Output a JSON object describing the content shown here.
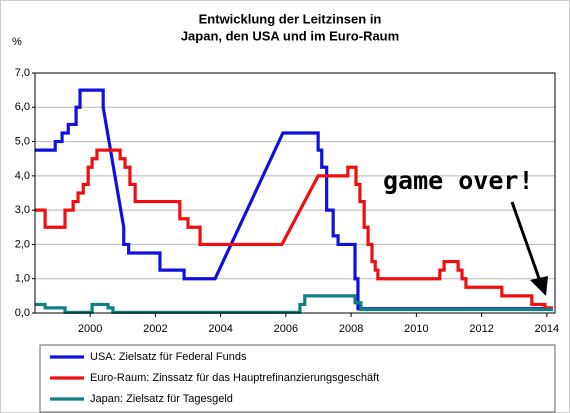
{
  "chart_data": {
    "type": "line",
    "title_lines": [
      "Entwicklung der Leitzinsen in",
      "Japan, den USA und im Euro-Raum"
    ],
    "y_label": "%",
    "annotation": "game over!",
    "xlim": [
      1998.31,
      2014.25
    ],
    "xticks": [
      2000,
      2002,
      2004,
      2006,
      2008,
      2010,
      2012,
      2014
    ],
    "ylim": [
      0,
      7
    ],
    "yticks": [
      {
        "value": 0,
        "label": "0,0"
      },
      {
        "value": 1,
        "label": "1,0"
      },
      {
        "value": 2,
        "label": "2,0"
      },
      {
        "value": 3,
        "label": "3,0"
      },
      {
        "value": 4,
        "label": "4,0"
      },
      {
        "value": 5,
        "label": "5,0"
      },
      {
        "value": 6,
        "label": "6,0"
      },
      {
        "value": 7,
        "label": "7,0"
      }
    ],
    "grid": true,
    "legend_position": "below",
    "series": [
      {
        "name": "USA: Zielsatz für Federal Funds",
        "color": "#1010e0",
        "x": [
          1998.31,
          1998.93,
          1998.93,
          1999.14,
          1999.14,
          1999.33,
          1999.33,
          1999.57,
          1999.57,
          1999.69,
          1999.69,
          2000.4,
          2000.4,
          2001.03,
          2001.03,
          2001.18,
          2001.18,
          2002.14,
          2002.14,
          2002.88,
          2002.88,
          2003.83,
          2005.91,
          2006.99,
          2006.99,
          2007.1,
          2007.1,
          2007.25,
          2007.25,
          2007.45,
          2007.45,
          2007.6,
          2007.6,
          2008.12,
          2008.12,
          2008.21,
          2008.21,
          2014.18
        ],
        "values": [
          4.75,
          4.75,
          5.0,
          5.0,
          5.25,
          5.25,
          5.5,
          5.5,
          6.0,
          6.0,
          6.5,
          6.5,
          6.0,
          2.5,
          2.0,
          2.0,
          1.75,
          1.75,
          1.25,
          1.25,
          1.0,
          1.0,
          5.25,
          5.25,
          4.75,
          4.75,
          4.25,
          4.25,
          3.0,
          3.0,
          2.25,
          2.25,
          2.0,
          2.0,
          1.0,
          1.0,
          0.125,
          0.125
        ]
      },
      {
        "name": "Euro-Raum: Zinssatz für das Hauptrefinanzierungsgeschäft",
        "color": "#ee1010",
        "x": [
          1998.31,
          1998.62,
          1998.62,
          1999.23,
          1999.23,
          1999.48,
          1999.48,
          1999.63,
          1999.63,
          1999.79,
          1999.79,
          1999.94,
          1999.94,
          2000.06,
          2000.06,
          2000.21,
          2000.21,
          2000.92,
          2000.92,
          2001.07,
          2001.07,
          2001.22,
          2001.22,
          2001.38,
          2001.38,
          2002.75,
          2002.75,
          2003.0,
          2003.0,
          2003.37,
          2003.37,
          2005.88,
          2006.99,
          2007.9,
          2007.9,
          2008.15,
          2008.15,
          2008.27,
          2008.27,
          2008.4,
          2008.4,
          2008.52,
          2008.52,
          2008.64,
          2008.64,
          2008.74,
          2008.74,
          2008.82,
          2008.82,
          2010.72,
          2010.72,
          2010.85,
          2010.85,
          2011.28,
          2011.28,
          2011.4,
          2011.4,
          2011.52,
          2011.52,
          2012.62,
          2012.62,
          2013.54,
          2013.54,
          2013.94,
          2013.94,
          2014.19
        ],
        "values": [
          3.0,
          3.0,
          2.5,
          2.5,
          3.0,
          3.0,
          3.25,
          3.25,
          3.5,
          3.5,
          3.75,
          3.75,
          4.25,
          4.25,
          4.5,
          4.5,
          4.75,
          4.75,
          4.5,
          4.5,
          4.25,
          4.25,
          3.75,
          3.75,
          3.25,
          3.25,
          2.75,
          2.75,
          2.5,
          2.5,
          2.0,
          2.0,
          4.0,
          4.0,
          4.25,
          4.25,
          3.75,
          3.75,
          3.25,
          3.25,
          2.5,
          2.5,
          2.0,
          2.0,
          1.5,
          1.5,
          1.25,
          1.25,
          1.0,
          1.0,
          1.25,
          1.25,
          1.5,
          1.5,
          1.25,
          1.25,
          1.0,
          1.0,
          0.75,
          0.75,
          0.5,
          0.5,
          0.25,
          0.25,
          0.15,
          0.15
        ]
      },
      {
        "name": "Japan: Zielsatz für Tagesgeld",
        "color": "#108080",
        "x": [
          1998.31,
          1998.62,
          1998.62,
          1999.23,
          1999.23,
          2000.06,
          2000.06,
          2000.55,
          2000.55,
          2000.7,
          2000.7,
          2006.43,
          2006.43,
          2006.58,
          2006.58,
          2008.12,
          2008.12,
          2008.3,
          2008.3,
          2014.19
        ],
        "values": [
          0.25,
          0.25,
          0.15,
          0.15,
          0.02,
          0.02,
          0.25,
          0.25,
          0.15,
          0.15,
          0.02,
          0.02,
          0.25,
          0.25,
          0.5,
          0.5,
          0.3,
          0.3,
          0.1,
          0.1
        ]
      }
    ]
  }
}
